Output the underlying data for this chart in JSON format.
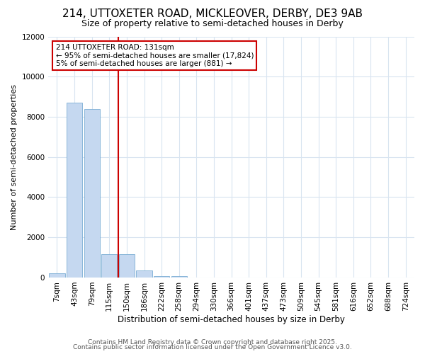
{
  "title": "214, UTTOXETER ROAD, MICKLEOVER, DERBY, DE3 9AB",
  "subtitle": "Size of property relative to semi-detached houses in Derby",
  "xlabel": "Distribution of semi-detached houses by size in Derby",
  "ylabel": "Number of semi-detached properties",
  "categories": [
    "7sqm",
    "43sqm",
    "79sqm",
    "115sqm",
    "150sqm",
    "186sqm",
    "222sqm",
    "258sqm",
    "294sqm",
    "330sqm",
    "366sqm",
    "401sqm",
    "437sqm",
    "473sqm",
    "509sqm",
    "545sqm",
    "581sqm",
    "616sqm",
    "652sqm",
    "688sqm",
    "724sqm"
  ],
  "values": [
    200,
    8700,
    8400,
    1150,
    1150,
    350,
    80,
    60,
    0,
    0,
    0,
    0,
    0,
    0,
    0,
    0,
    0,
    0,
    0,
    0,
    0
  ],
  "bar_color": "#c5d8f0",
  "bar_edge_color": "#7badd4",
  "ylim": [
    0,
    12000
  ],
  "yticks": [
    0,
    2000,
    4000,
    6000,
    8000,
    10000,
    12000
  ],
  "red_line_x": 3.5,
  "annotation_line1": "214 UTTOXETER ROAD: 131sqm",
  "annotation_line2": "← 95% of semi-detached houses are smaller (17,824)",
  "annotation_line3": "5% of semi-detached houses are larger (881) →",
  "annotation_box_color": "#cc0000",
  "footer1": "Contains HM Land Registry data © Crown copyright and database right 2025.",
  "footer2": "Contains public sector information licensed under the Open Government Licence v3.0.",
  "background_color": "#ffffff",
  "grid_color": "#d8e4f0",
  "title_fontsize": 11,
  "subtitle_fontsize": 9,
  "xlabel_fontsize": 8.5,
  "ylabel_fontsize": 8,
  "tick_fontsize": 7.5,
  "footer_fontsize": 6.5
}
